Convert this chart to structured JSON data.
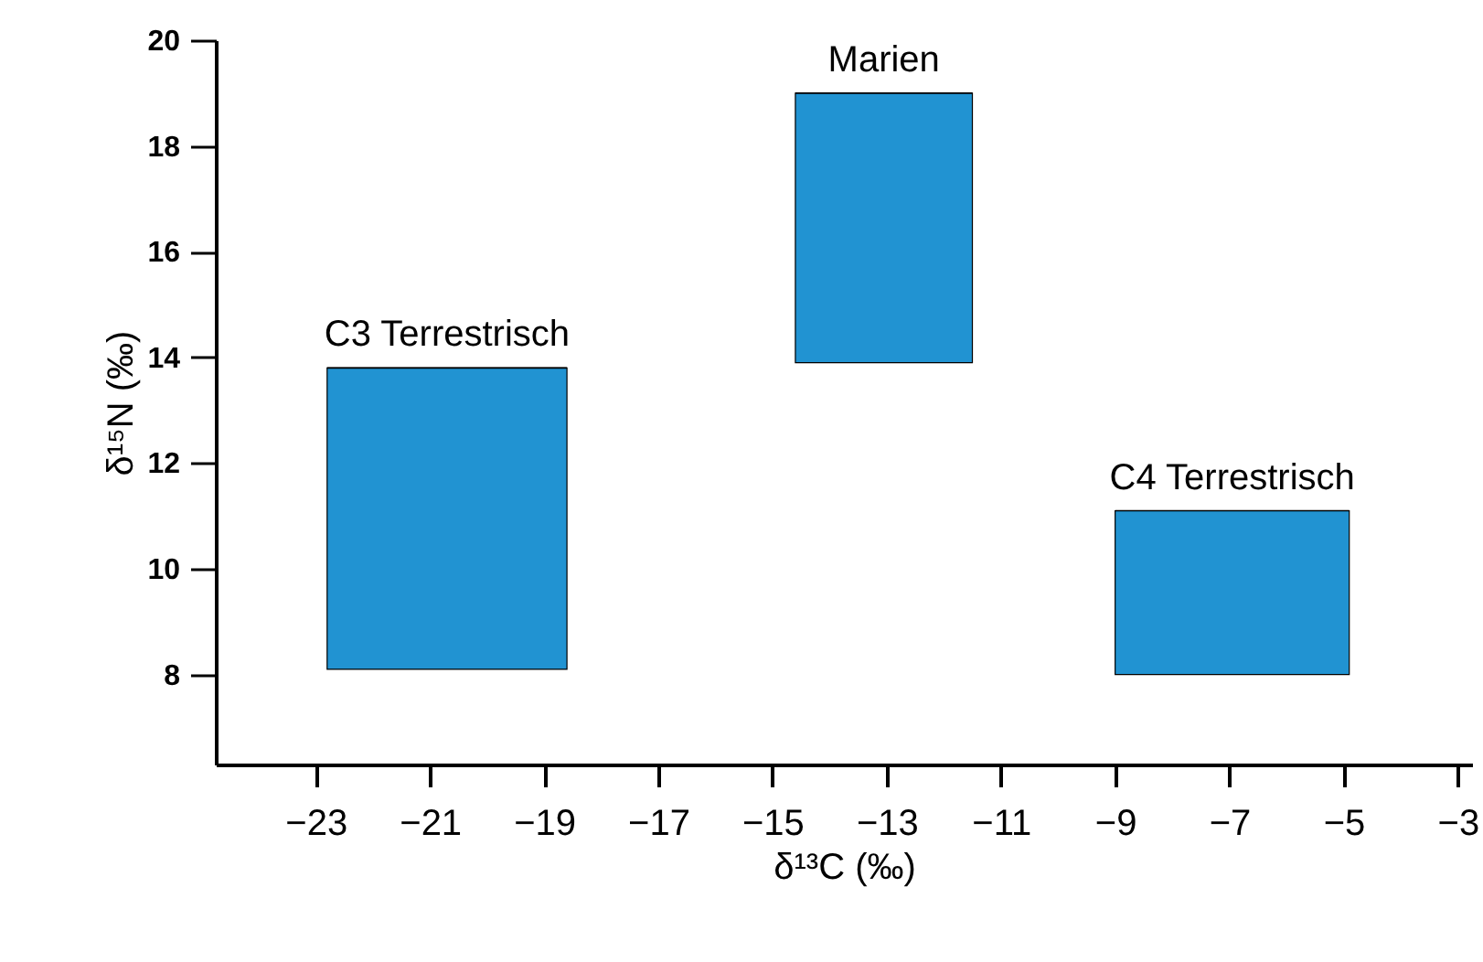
{
  "chart_data": {
    "type": "bar",
    "xlabel": "δ¹³C (‰)",
    "ylabel": "δ¹⁵N (‰)",
    "x": [
      -20.7,
      -13.05,
      -6.95
    ],
    "xerrors": [
      [
        -22.8,
        -18.6
      ],
      [
        -14.6,
        -11.5
      ],
      [
        -9,
        -4.9
      ]
    ],
    "base": [
      8.1,
      13.9,
      8.0
    ],
    "values": [
      5.7,
      5.1,
      3.1
    ],
    "color": "#2193d2",
    "xlim": [
      -24.75,
      -2.75
    ],
    "xticks": [
      -23,
      -21,
      -19,
      -17,
      -15,
      -13,
      -11,
      -9,
      -7,
      -5,
      -3
    ],
    "ylim": [
      6.3,
      20
    ],
    "yticks": [
      8,
      10,
      12,
      14,
      16,
      18,
      20
    ],
    "grid": false,
    "annotations": [
      "C3 Terrestrisch",
      "Marien",
      "C4 Terrestrisch"
    ]
  }
}
